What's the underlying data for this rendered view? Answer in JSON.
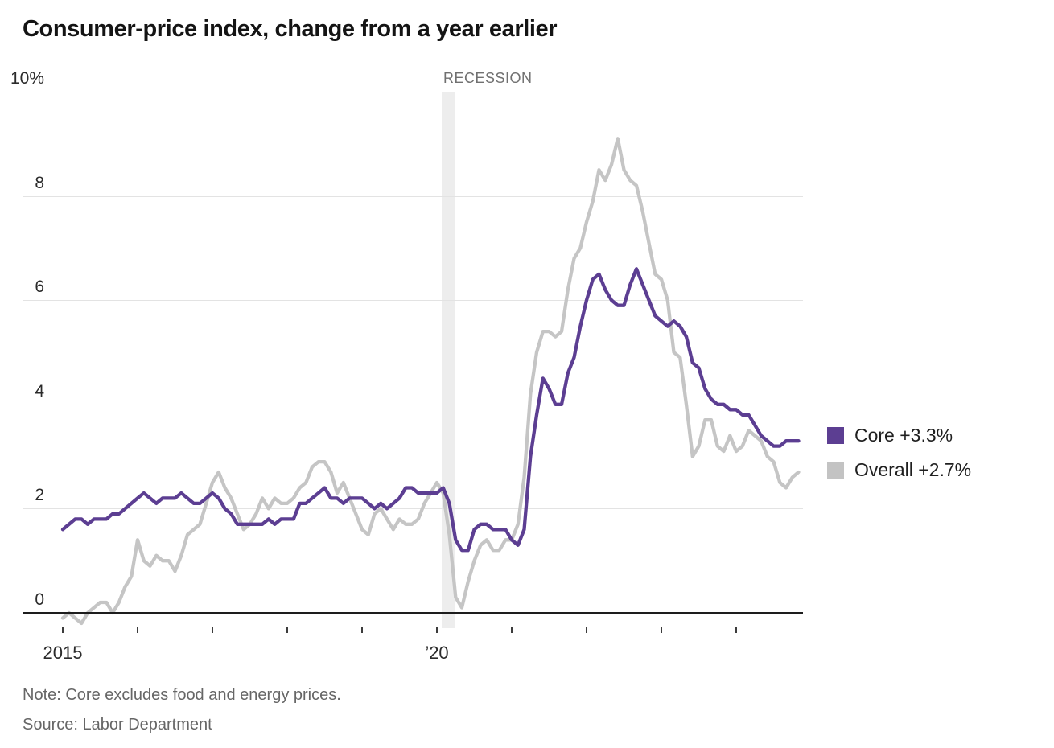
{
  "title": "Consumer-price index, change from a year earlier",
  "recession_label": "RECESSION",
  "note": "Note: Core excludes food and energy prices.",
  "source": "Source: Labor Department",
  "y_axis": {
    "labels": [
      "10%",
      "8",
      "6",
      "4",
      "2",
      "0"
    ],
    "values": [
      10,
      8,
      6,
      4,
      2,
      0
    ]
  },
  "x_axis": {
    "tick_years": [
      2015,
      2016,
      2017,
      2018,
      2019,
      2020,
      2021,
      2022,
      2023,
      2024
    ],
    "labels": [
      {
        "text": "2015",
        "year": 2015
      },
      {
        "text": "’20",
        "year": 2020
      }
    ]
  },
  "legend": {
    "items": [
      {
        "label": "Core +3.3%",
        "color": "#5c3e92"
      },
      {
        "label": "Overall +2.7%",
        "color": "#c3c3c3"
      }
    ]
  },
  "colors": {
    "core_line": "#5c3e92",
    "overall_line": "#c5c5c5",
    "gridline": "#e3e3e3",
    "zero_axis": "#1d1d1d",
    "recession_band": "#ededed"
  },
  "chart_data": {
    "type": "line",
    "title": "Consumer-price index, change from a year earlier",
    "frequency": "monthly",
    "x_start": "2015-01",
    "x_end": "2024-11",
    "ylim": [
      0,
      10
    ],
    "y_unit": "percent",
    "grid": "horizontal",
    "legend_position": "right",
    "recession_band": {
      "start": "2020-02",
      "end": "2020-04"
    },
    "series": [
      {
        "name": "Core",
        "latest_label": "Core +3.3%",
        "color": "#5c3e92",
        "values": [
          1.6,
          1.7,
          1.8,
          1.8,
          1.7,
          1.8,
          1.8,
          1.8,
          1.9,
          1.9,
          2.0,
          2.1,
          2.2,
          2.3,
          2.2,
          2.1,
          2.2,
          2.2,
          2.2,
          2.3,
          2.2,
          2.1,
          2.1,
          2.2,
          2.3,
          2.2,
          2.0,
          1.9,
          1.7,
          1.7,
          1.7,
          1.7,
          1.7,
          1.8,
          1.7,
          1.8,
          1.8,
          1.8,
          2.1,
          2.1,
          2.2,
          2.3,
          2.4,
          2.2,
          2.2,
          2.1,
          2.2,
          2.2,
          2.2,
          2.1,
          2.0,
          2.1,
          2.0,
          2.1,
          2.2,
          2.4,
          2.4,
          2.3,
          2.3,
          2.3,
          2.3,
          2.4,
          2.1,
          1.4,
          1.2,
          1.2,
          1.6,
          1.7,
          1.7,
          1.6,
          1.6,
          1.6,
          1.4,
          1.3,
          1.6,
          3.0,
          3.8,
          4.5,
          4.3,
          4.0,
          4.0,
          4.6,
          4.9,
          5.5,
          6.0,
          6.4,
          6.5,
          6.2,
          6.0,
          5.9,
          5.9,
          6.3,
          6.6,
          6.3,
          6.0,
          5.7,
          5.6,
          5.5,
          5.6,
          5.5,
          5.3,
          4.8,
          4.7,
          4.3,
          4.1,
          4.0,
          4.0,
          3.9,
          3.9,
          3.8,
          3.8,
          3.6,
          3.4,
          3.3,
          3.2,
          3.2,
          3.3,
          3.3,
          3.3
        ]
      },
      {
        "name": "Overall",
        "latest_label": "Overall +2.7%",
        "color": "#c5c5c5",
        "values": [
          -0.1,
          0.0,
          -0.1,
          -0.2,
          0.0,
          0.1,
          0.2,
          0.2,
          0.0,
          0.2,
          0.5,
          0.7,
          1.4,
          1.0,
          0.9,
          1.1,
          1.0,
          1.0,
          0.8,
          1.1,
          1.5,
          1.6,
          1.7,
          2.1,
          2.5,
          2.7,
          2.4,
          2.2,
          1.9,
          1.6,
          1.7,
          1.9,
          2.2,
          2.0,
          2.2,
          2.1,
          2.1,
          2.2,
          2.4,
          2.5,
          2.8,
          2.9,
          2.9,
          2.7,
          2.3,
          2.5,
          2.2,
          1.9,
          1.6,
          1.5,
          1.9,
          2.0,
          1.8,
          1.6,
          1.8,
          1.7,
          1.7,
          1.8,
          2.1,
          2.3,
          2.5,
          2.3,
          1.5,
          0.3,
          0.1,
          0.6,
          1.0,
          1.3,
          1.4,
          1.2,
          1.2,
          1.4,
          1.4,
          1.7,
          2.6,
          4.2,
          5.0,
          5.4,
          5.4,
          5.3,
          5.4,
          6.2,
          6.8,
          7.0,
          7.5,
          7.9,
          8.5,
          8.3,
          8.6,
          9.1,
          8.5,
          8.3,
          8.2,
          7.7,
          7.1,
          6.5,
          6.4,
          6.0,
          5.0,
          4.9,
          4.0,
          3.0,
          3.2,
          3.7,
          3.7,
          3.2,
          3.1,
          3.4,
          3.1,
          3.2,
          3.5,
          3.4,
          3.3,
          3.0,
          2.9,
          2.5,
          2.4,
          2.6,
          2.7
        ]
      }
    ]
  }
}
